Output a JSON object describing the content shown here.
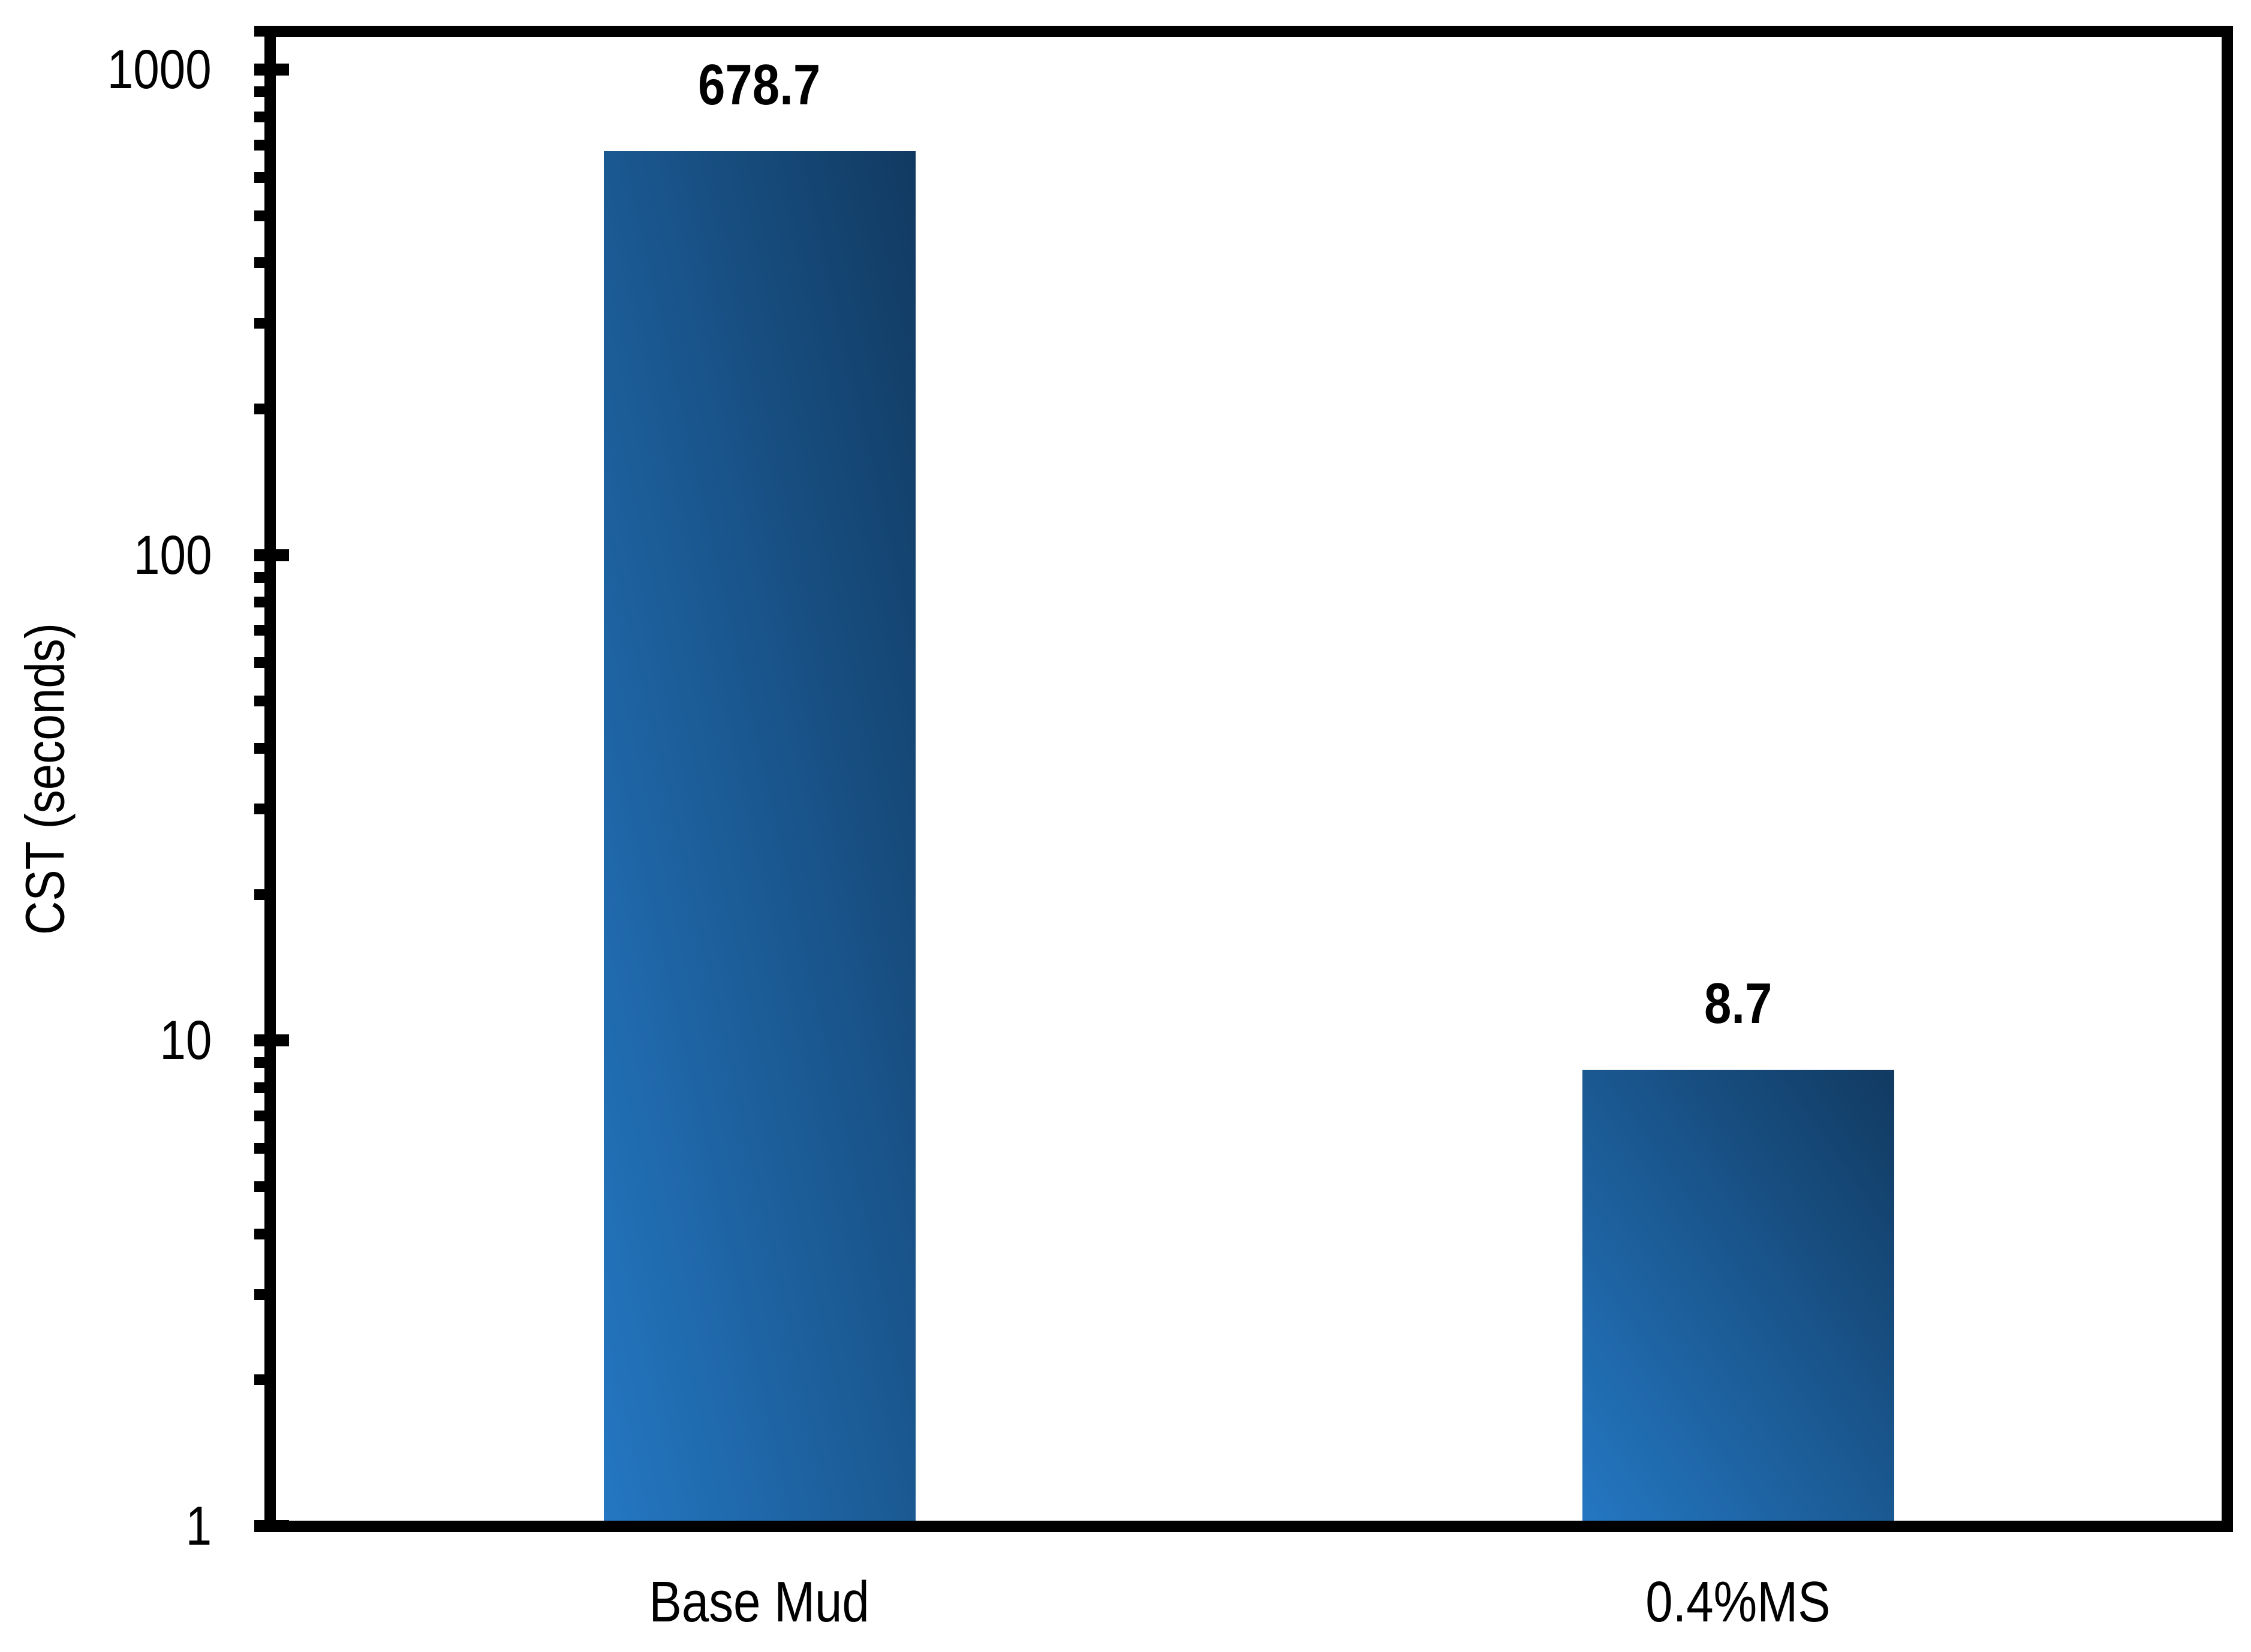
{
  "window": {
    "background": "#FFFFFF"
  },
  "chart_data": {
    "type": "bar",
    "title": "",
    "xlabel": "",
    "ylabel": "CST (seconds)",
    "categories": [
      "Base Mud",
      "0.4%MS"
    ],
    "values": [
      678.7,
      8.7
    ],
    "value_labels": [
      "678.7",
      "8.7"
    ],
    "y_scale": "log10",
    "ylim": [
      1,
      1200
    ],
    "y_major_ticks": [
      1,
      10,
      100,
      1000
    ],
    "y_major_tick_labels": [
      "1",
      "10",
      "100",
      "1000"
    ],
    "y_minor_tick_multiples": [
      2,
      3,
      4,
      5,
      6,
      7,
      8,
      9
    ],
    "grid": false,
    "legend": false,
    "frame_color": "#000000",
    "text_color": "#000000",
    "bar_gradient": {
      "light": "#2477C2",
      "dark": "#113A61",
      "direction": "to top right"
    }
  }
}
